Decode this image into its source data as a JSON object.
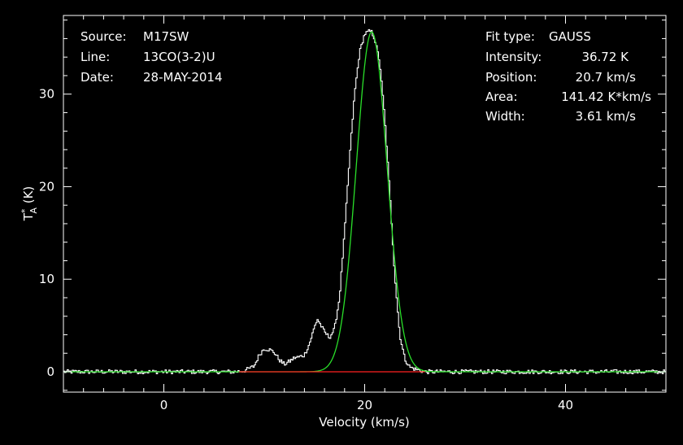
{
  "chart_data": {
    "type": "line",
    "title": "",
    "xlabel": "Velocity (km/s)",
    "ylabel": "T*A (K)",
    "ylabel_parts": {
      "main": "T",
      "sup": "*",
      "sub": "A",
      "rest": " (K)"
    },
    "xlim": [
      -10,
      50
    ],
    "ylim": [
      -2.2,
      38.5
    ],
    "x_ticks": [
      0,
      20,
      40
    ],
    "y_ticks": [
      0,
      10,
      20,
      30
    ],
    "grid": false,
    "info_left": [
      {
        "key": "Source:",
        "value": "M17SW"
      },
      {
        "key": "Line:",
        "value": "13CO(3-2)U"
      },
      {
        "key": "Date:",
        "value": "28-MAY-2014"
      }
    ],
    "info_right": [
      {
        "key": "Fit type:",
        "value": "GAUSS"
      },
      {
        "key": "Intensity:",
        "value": "36.72 K"
      },
      {
        "key": "Position:",
        "value": "20.7 km/s"
      },
      {
        "key": "Area:",
        "value": "141.42 K*km/s"
      },
      {
        "key": "Width:",
        "value": "3.61 km/s"
      }
    ],
    "series": [
      {
        "kind": "spectrum",
        "color": "#ffffff",
        "x": [
          -10,
          7.0,
          8.0,
          9.0,
          9.5,
          10.0,
          10.5,
          11.0,
          11.5,
          12.0,
          12.5,
          13.0,
          13.5,
          14.0,
          14.5,
          15.0,
          15.3,
          15.6,
          16.0,
          16.5,
          17.0,
          17.5,
          18.0,
          18.5,
          19.0,
          19.5,
          20.0,
          20.5,
          20.7,
          21.0,
          21.5,
          22.0,
          22.5,
          23.0,
          23.5,
          24.0,
          24.5,
          25.0,
          25.5,
          26.0,
          50
        ],
        "y": [
          0,
          0,
          0.1,
          0.6,
          1.8,
          2.5,
          2.4,
          2.1,
          1.3,
          0.8,
          1.1,
          1.5,
          1.6,
          1.8,
          3.0,
          4.8,
          5.7,
          5.1,
          4.3,
          3.7,
          4.6,
          8.0,
          15.0,
          23.0,
          30.0,
          34.5,
          36.5,
          36.8,
          36.7,
          36.0,
          33.5,
          27.5,
          19.5,
          10.5,
          4.0,
          1.4,
          0.5,
          0.3,
          0.15,
          0.0,
          0
        ]
      },
      {
        "kind": "gaussian_fit",
        "color": "#2adf2a",
        "amplitude": 36.72,
        "center": 20.7,
        "fwhm": 3.61
      },
      {
        "kind": "baseline",
        "color": "#ff2020",
        "x": [
          7.5,
          26.0
        ],
        "y": [
          0,
          0
        ]
      }
    ]
  }
}
